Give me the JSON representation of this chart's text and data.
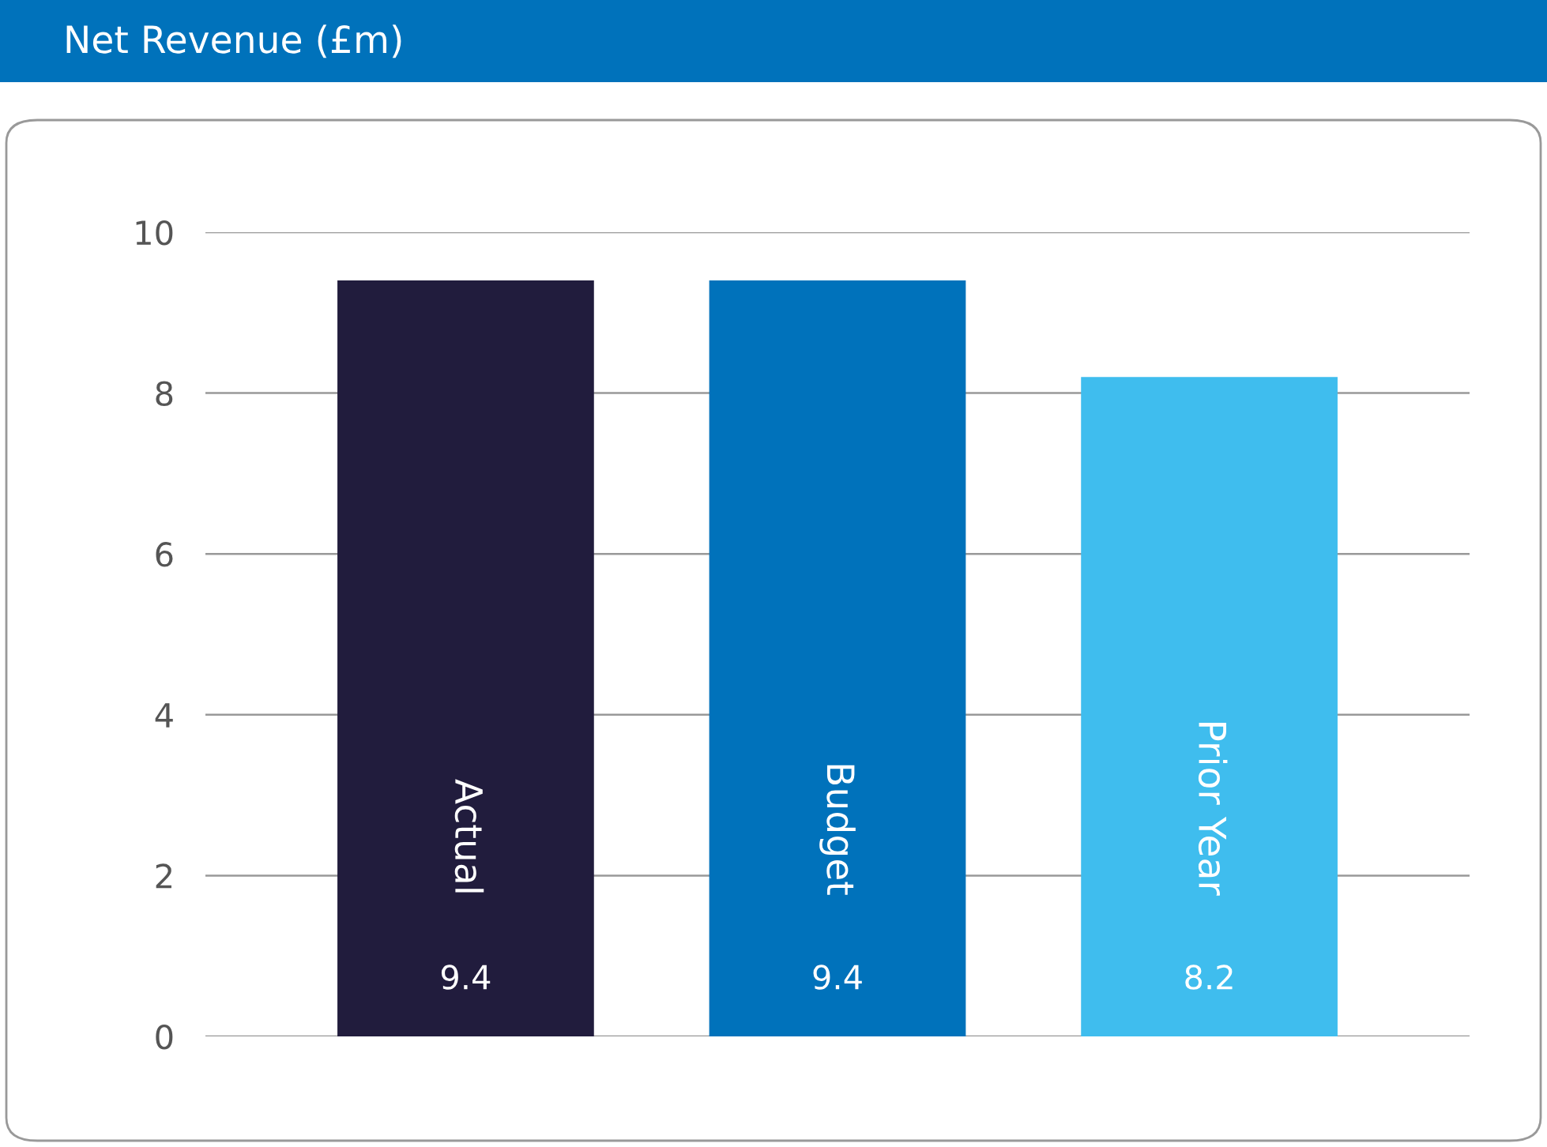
{
  "chart_data": {
    "type": "bar",
    "title": "Net Revenue (£m)",
    "categories": [
      "Actual",
      "Budget",
      "Prior Year"
    ],
    "values": [
      9.4,
      9.4,
      8.2
    ],
    "colors": [
      "#211c3d",
      "#0072bb",
      "#3fbdee"
    ],
    "ylim": [
      0,
      10
    ],
    "yticks": [
      0,
      2,
      4,
      6,
      8,
      10
    ],
    "grid": "y",
    "data_labels": true
  }
}
